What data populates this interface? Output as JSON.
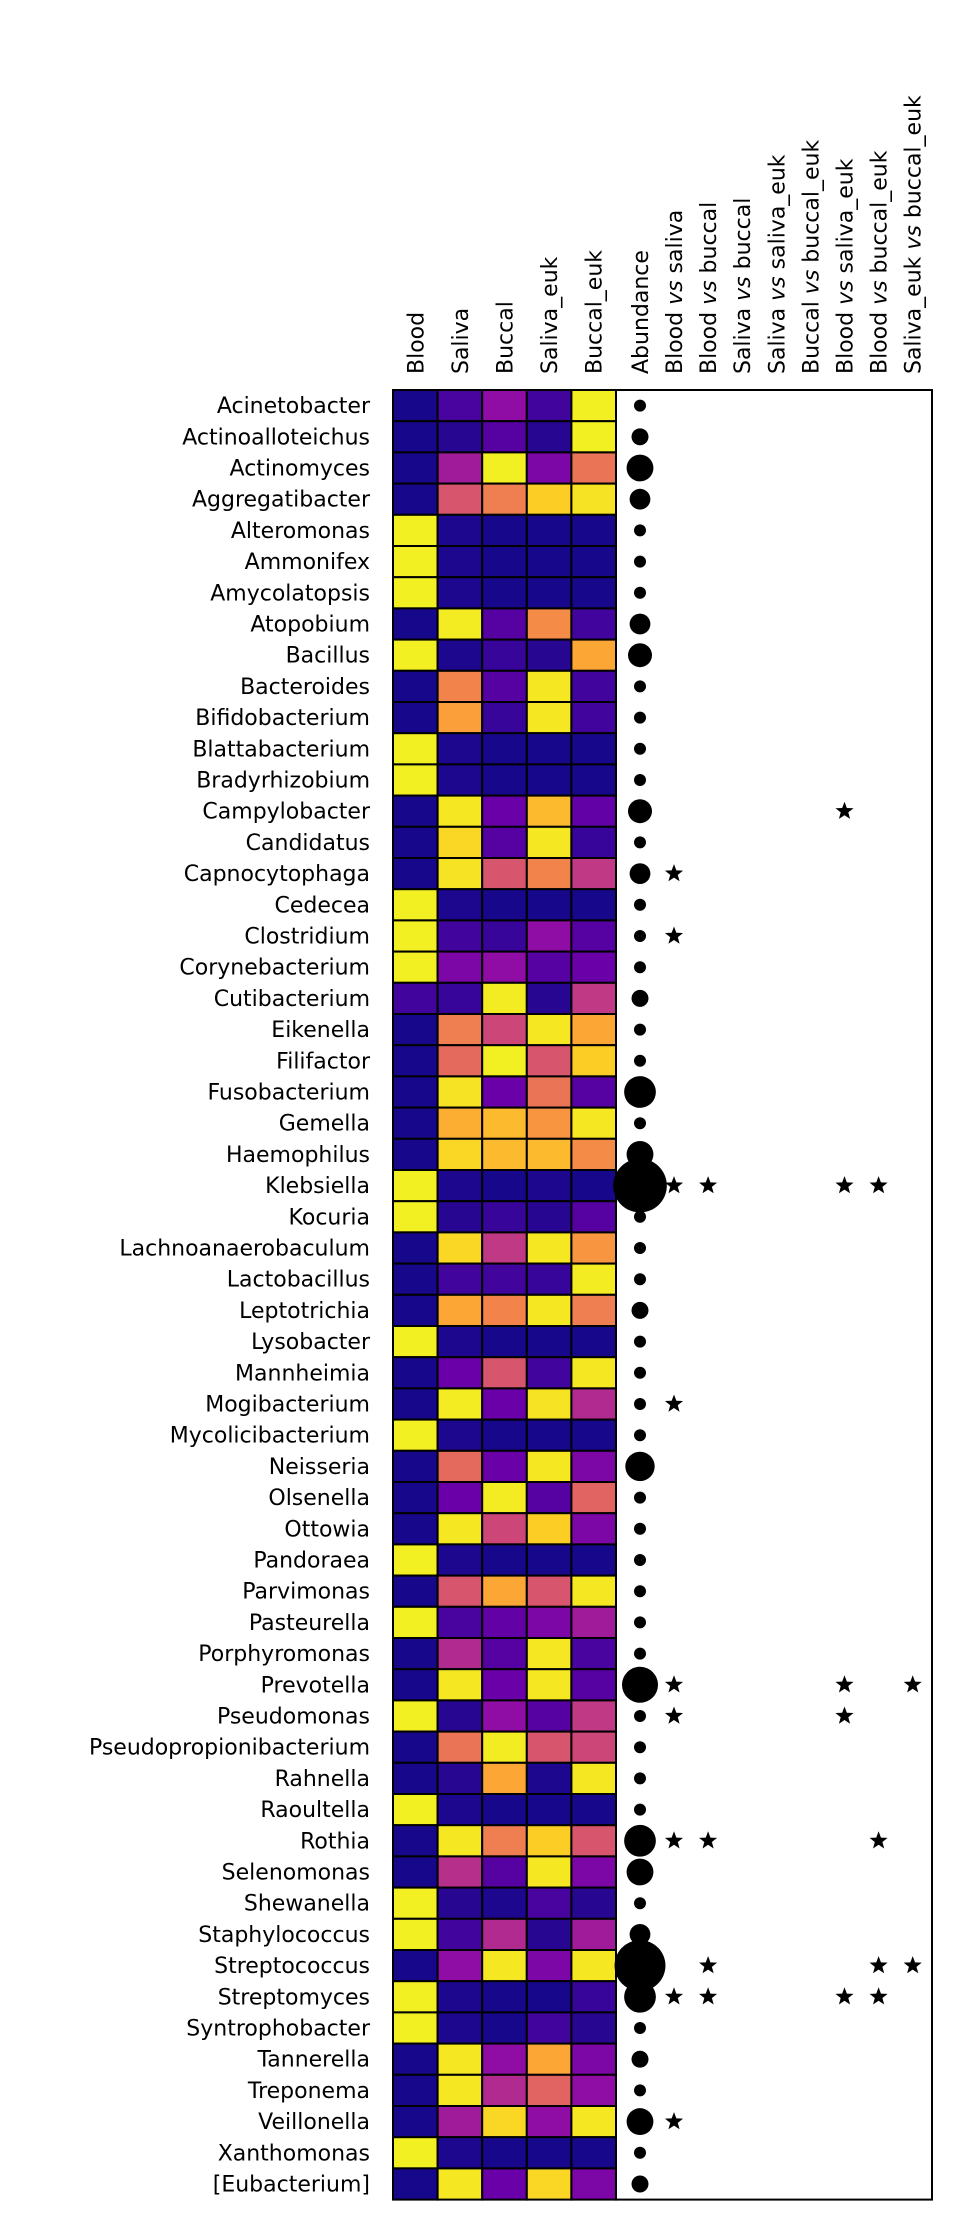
{
  "chart_data": {
    "type": "heatmap",
    "columns": [
      "Blood",
      "Saliva",
      "Buccal",
      "Saliva_euk",
      "Buccal_euk"
    ],
    "comparison_columns": [
      {
        "parts": [
          [
            "Blood",
            false
          ],
          [
            " vs ",
            true
          ],
          [
            "saliva",
            false
          ]
        ]
      },
      {
        "parts": [
          [
            "Blood",
            false
          ],
          [
            " vs ",
            true
          ],
          [
            "buccal",
            false
          ]
        ]
      },
      {
        "parts": [
          [
            "Saliva",
            false
          ],
          [
            " vs ",
            true
          ],
          [
            "buccal",
            false
          ]
        ]
      },
      {
        "parts": [
          [
            "Saliva",
            false
          ],
          [
            " vs ",
            true
          ],
          [
            "saliva_euk",
            false
          ]
        ]
      },
      {
        "parts": [
          [
            "Buccal",
            false
          ],
          [
            " vs ",
            true
          ],
          [
            "buccal_euk",
            false
          ]
        ]
      },
      {
        "parts": [
          [
            "Blood",
            false
          ],
          [
            " vs ",
            true
          ],
          [
            "saliva_euk",
            false
          ]
        ]
      },
      {
        "parts": [
          [
            "Blood",
            false
          ],
          [
            " vs ",
            true
          ],
          [
            "buccal_euk",
            false
          ]
        ]
      },
      {
        "parts": [
          [
            "Saliva_euk",
            false
          ],
          [
            " vs ",
            true
          ],
          [
            "buccal_euk",
            false
          ]
        ]
      }
    ],
    "abundance_label": "Abundance",
    "colormap": "plasma",
    "rows": [
      {
        "genus": "Acinetobacter",
        "values": [
          0.02,
          0.12,
          0.3,
          0.1,
          0.98
        ],
        "abundance": 1,
        "stars": []
      },
      {
        "genus": "Actinoalloteichus",
        "values": [
          0.02,
          0.05,
          0.15,
          0.05,
          0.98
        ],
        "abundance": 2,
        "stars": []
      },
      {
        "genus": "Actinomyces",
        "values": [
          0.02,
          0.35,
          0.98,
          0.25,
          0.65
        ],
        "abundance": 5,
        "stars": []
      },
      {
        "genus": "Aggregatibacter",
        "values": [
          0.02,
          0.55,
          0.68,
          0.9,
          0.95
        ],
        "abundance": 3,
        "stars": []
      },
      {
        "genus": "Alteromonas",
        "values": [
          0.98,
          0.03,
          0.02,
          0.02,
          0.02
        ],
        "abundance": 1,
        "stars": []
      },
      {
        "genus": "Ammonifex",
        "values": [
          0.98,
          0.03,
          0.02,
          0.02,
          0.02
        ],
        "abundance": 1,
        "stars": []
      },
      {
        "genus": "Amycolatopsis",
        "values": [
          0.98,
          0.03,
          0.02,
          0.02,
          0.02
        ],
        "abundance": 1,
        "stars": []
      },
      {
        "genus": "Atopobium",
        "values": [
          0.02,
          0.97,
          0.15,
          0.72,
          0.1
        ],
        "abundance": 3,
        "stars": []
      },
      {
        "genus": "Bacillus",
        "values": [
          0.98,
          0.03,
          0.08,
          0.05,
          0.8
        ],
        "abundance": 4,
        "stars": []
      },
      {
        "genus": "Bacteroides",
        "values": [
          0.02,
          0.7,
          0.15,
          0.96,
          0.1
        ],
        "abundance": 1,
        "stars": []
      },
      {
        "genus": "Bifidobacterium",
        "values": [
          0.02,
          0.78,
          0.08,
          0.96,
          0.1
        ],
        "abundance": 1,
        "stars": []
      },
      {
        "genus": "Blattabacterium",
        "values": [
          0.98,
          0.03,
          0.02,
          0.02,
          0.02
        ],
        "abundance": 1,
        "stars": []
      },
      {
        "genus": "Bradyrhizobium",
        "values": [
          0.98,
          0.03,
          0.02,
          0.02,
          0.02
        ],
        "abundance": 1,
        "stars": []
      },
      {
        "genus": "Campylobacter",
        "values": [
          0.02,
          0.96,
          0.2,
          0.85,
          0.18
        ],
        "abundance": 4,
        "stars": [
          6
        ]
      },
      {
        "genus": "Candidatus",
        "values": [
          0.02,
          0.92,
          0.15,
          0.96,
          0.08
        ],
        "abundance": 1,
        "stars": []
      },
      {
        "genus": "Capnocytophaga",
        "values": [
          0.02,
          0.95,
          0.55,
          0.7,
          0.45
        ],
        "abundance": 3,
        "stars": [
          1
        ]
      },
      {
        "genus": "Cedecea",
        "values": [
          0.98,
          0.03,
          0.02,
          0.02,
          0.02
        ],
        "abundance": 1,
        "stars": []
      },
      {
        "genus": "Clostridium",
        "values": [
          0.98,
          0.1,
          0.08,
          0.3,
          0.15
        ],
        "abundance": 1,
        "stars": [
          1
        ]
      },
      {
        "genus": "Corynebacterium",
        "values": [
          0.98,
          0.25,
          0.3,
          0.15,
          0.2
        ],
        "abundance": 1,
        "stars": []
      },
      {
        "genus": "Cutibacterium",
        "values": [
          0.1,
          0.08,
          0.97,
          0.05,
          0.45
        ],
        "abundance": 2,
        "stars": []
      },
      {
        "genus": "Eikenella",
        "values": [
          0.02,
          0.68,
          0.5,
          0.96,
          0.8
        ],
        "abundance": 1,
        "stars": []
      },
      {
        "genus": "Filifactor",
        "values": [
          0.02,
          0.62,
          0.98,
          0.55,
          0.9
        ],
        "abundance": 1,
        "stars": []
      },
      {
        "genus": "Fusobacterium",
        "values": [
          0.02,
          0.95,
          0.2,
          0.65,
          0.15
        ],
        "abundance": 7,
        "stars": []
      },
      {
        "genus": "Gemella",
        "values": [
          0.02,
          0.82,
          0.85,
          0.75,
          0.96
        ],
        "abundance": 1,
        "stars": []
      },
      {
        "genus": "Haemophilus",
        "values": [
          0.02,
          0.92,
          0.85,
          0.85,
          0.72
        ],
        "abundance": 5,
        "stars": []
      },
      {
        "genus": "Klebsiella",
        "values": [
          0.98,
          0.03,
          0.02,
          0.03,
          0.02
        ],
        "abundance": 20,
        "stars": [
          1,
          2,
          6,
          7
        ]
      },
      {
        "genus": "Kocuria",
        "values": [
          0.98,
          0.05,
          0.08,
          0.05,
          0.15
        ],
        "abundance": 1,
        "stars": []
      },
      {
        "genus": "Lachnoanaerobaculum",
        "values": [
          0.02,
          0.92,
          0.45,
          0.96,
          0.75
        ],
        "abundance": 1,
        "stars": []
      },
      {
        "genus": "Lactobacillus",
        "values": [
          0.02,
          0.1,
          0.1,
          0.08,
          0.97
        ],
        "abundance": 1,
        "stars": []
      },
      {
        "genus": "Leptotrichia",
        "values": [
          0.02,
          0.8,
          0.7,
          0.96,
          0.68
        ],
        "abundance": 2,
        "stars": []
      },
      {
        "genus": "Lysobacter",
        "values": [
          0.98,
          0.03,
          0.02,
          0.02,
          0.02
        ],
        "abundance": 1,
        "stars": []
      },
      {
        "genus": "Mannheimia",
        "values": [
          0.02,
          0.2,
          0.55,
          0.1,
          0.96
        ],
        "abundance": 1,
        "stars": []
      },
      {
        "genus": "Mogibacterium",
        "values": [
          0.02,
          0.97,
          0.2,
          0.95,
          0.4
        ],
        "abundance": 1,
        "stars": [
          1
        ]
      },
      {
        "genus": "Mycolicibacterium",
        "values": [
          0.98,
          0.03,
          0.02,
          0.02,
          0.02
        ],
        "abundance": 1,
        "stars": []
      },
      {
        "genus": "Neisseria",
        "values": [
          0.02,
          0.62,
          0.2,
          0.96,
          0.25
        ],
        "abundance": 6,
        "stars": []
      },
      {
        "genus": "Olsenella",
        "values": [
          0.02,
          0.2,
          0.97,
          0.15,
          0.6
        ],
        "abundance": 1,
        "stars": []
      },
      {
        "genus": "Ottowia",
        "values": [
          0.02,
          0.96,
          0.5,
          0.9,
          0.25
        ],
        "abundance": 1,
        "stars": []
      },
      {
        "genus": "Pandoraea",
        "values": [
          0.98,
          0.03,
          0.02,
          0.02,
          0.02
        ],
        "abundance": 1,
        "stars": []
      },
      {
        "genus": "Parvimonas",
        "values": [
          0.02,
          0.55,
          0.8,
          0.55,
          0.96
        ],
        "abundance": 1,
        "stars": []
      },
      {
        "genus": "Pasteurella",
        "values": [
          0.98,
          0.12,
          0.18,
          0.25,
          0.35
        ],
        "abundance": 1,
        "stars": []
      },
      {
        "genus": "Porphyromonas",
        "values": [
          0.02,
          0.4,
          0.15,
          0.96,
          0.12
        ],
        "abundance": 1,
        "stars": []
      },
      {
        "genus": "Prevotella",
        "values": [
          0.02,
          0.96,
          0.2,
          0.96,
          0.15
        ],
        "abundance": 9,
        "stars": [
          1,
          6,
          8
        ]
      },
      {
        "genus": "Pseudomonas",
        "values": [
          0.98,
          0.05,
          0.3,
          0.15,
          0.45
        ],
        "abundance": 1,
        "stars": [
          1,
          6
        ]
      },
      {
        "genus": "Pseudopropionibacterium",
        "values": [
          0.02,
          0.65,
          0.97,
          0.55,
          0.5
        ],
        "abundance": 1,
        "stars": []
      },
      {
        "genus": "Rahnella",
        "values": [
          0.02,
          0.05,
          0.8,
          0.03,
          0.96
        ],
        "abundance": 1,
        "stars": []
      },
      {
        "genus": "Raoultella",
        "values": [
          0.98,
          0.03,
          0.02,
          0.02,
          0.02
        ],
        "abundance": 1,
        "stars": []
      },
      {
        "genus": "Rothia",
        "values": [
          0.02,
          0.96,
          0.68,
          0.9,
          0.55
        ],
        "abundance": 7,
        "stars": [
          1,
          2,
          7
        ]
      },
      {
        "genus": "Selenomonas",
        "values": [
          0.02,
          0.42,
          0.15,
          0.96,
          0.25
        ],
        "abundance": 5,
        "stars": []
      },
      {
        "genus": "Shewanella",
        "values": [
          0.98,
          0.05,
          0.03,
          0.12,
          0.05
        ],
        "abundance": 1,
        "stars": []
      },
      {
        "genus": "Staphylococcus",
        "values": [
          0.98,
          0.1,
          0.4,
          0.05,
          0.35
        ],
        "abundance": 3,
        "stars": []
      },
      {
        "genus": "Streptococcus",
        "values": [
          0.02,
          0.3,
          0.96,
          0.25,
          0.96
        ],
        "abundance": 18,
        "stars": [
          2,
          7,
          8
        ]
      },
      {
        "genus": "Streptomyces",
        "values": [
          0.98,
          0.03,
          0.02,
          0.02,
          0.08
        ],
        "abundance": 7,
        "stars": [
          1,
          2,
          6,
          7
        ]
      },
      {
        "genus": "Syntrophobacter",
        "values": [
          0.98,
          0.03,
          0.02,
          0.1,
          0.05
        ],
        "abundance": 1,
        "stars": []
      },
      {
        "genus": "Tannerella",
        "values": [
          0.02,
          0.96,
          0.3,
          0.8,
          0.25
        ],
        "abundance": 2,
        "stars": []
      },
      {
        "genus": "Treponema",
        "values": [
          0.02,
          0.96,
          0.4,
          0.6,
          0.3
        ],
        "abundance": 1,
        "stars": []
      },
      {
        "genus": "Veillonella",
        "values": [
          0.02,
          0.35,
          0.92,
          0.3,
          0.96
        ],
        "abundance": 5,
        "stars": [
          1
        ]
      },
      {
        "genus": "Xanthomonas",
        "values": [
          0.98,
          0.03,
          0.02,
          0.02,
          0.02
        ],
        "abundance": 1,
        "stars": []
      },
      {
        "genus": "[Eubacterium]",
        "values": [
          0.02,
          0.96,
          0.2,
          0.92,
          0.25
        ],
        "abundance": 2,
        "stars": []
      }
    ]
  }
}
